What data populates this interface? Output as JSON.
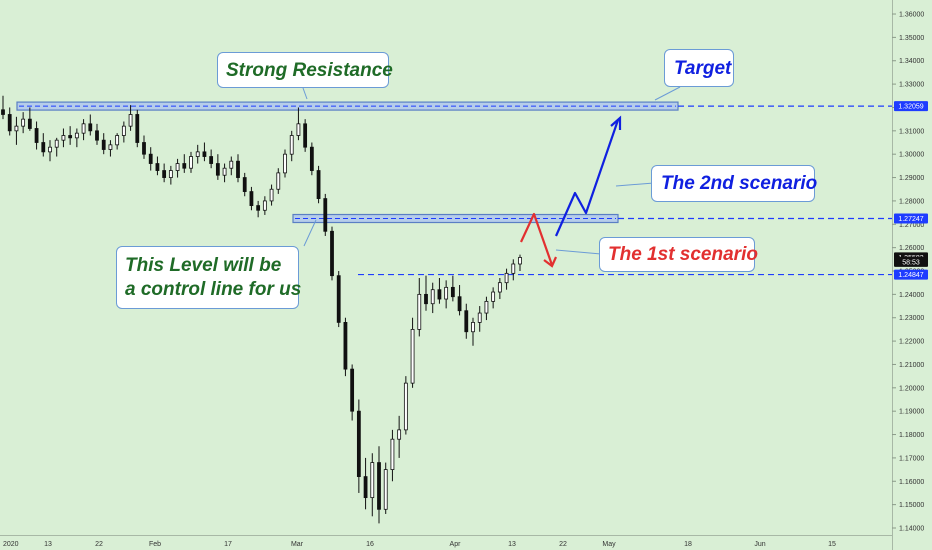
{
  "chart_data": {
    "type": "candlestick",
    "symbol_hint": "GBPUSD",
    "y_ticks": [
      "1.36000",
      "1.35000",
      "1.34000",
      "1.33000",
      "1.32000",
      "1.31000",
      "1.30000",
      "1.29000",
      "1.28000",
      "1.27000",
      "1.26000",
      "1.25000",
      "1.24000",
      "1.23000",
      "1.22000",
      "1.21000",
      "1.20000",
      "1.19000",
      "1.18000",
      "1.17000",
      "1.16000",
      "1.15000",
      "1.14000"
    ],
    "ylim": [
      1.137,
      1.366
    ],
    "x_ticks": [
      "2020",
      "13",
      "22",
      "Feb",
      "17",
      "Mar",
      "16",
      "Apr",
      "13",
      "22",
      "May",
      "18",
      "Jun",
      "15"
    ],
    "price_labels": [
      {
        "value": 1.32059,
        "text": "1.32059",
        "color": "#1e3cff"
      },
      {
        "value": 1.27247,
        "text": "1.27247",
        "color": "#1e3cff"
      },
      {
        "value": 1.25582,
        "text": "1.25582",
        "color": "#111111"
      },
      {
        "value": 1.2539,
        "text": "58:53",
        "color": "#111111"
      },
      {
        "value": 1.24847,
        "text": "1.24847",
        "color": "#1e3cff"
      }
    ],
    "levels": [
      {
        "name": "strong-resistance",
        "value": 1.32059
      },
      {
        "name": "mid-level",
        "value": 1.27247
      },
      {
        "name": "control-line",
        "value": 1.24847
      }
    ],
    "candles": [
      {
        "o": 1.319,
        "h": 1.325,
        "l": 1.315,
        "c": 1.317
      },
      {
        "o": 1.317,
        "h": 1.32,
        "l": 1.308,
        "c": 1.31
      },
      {
        "o": 1.31,
        "h": 1.316,
        "l": 1.304,
        "c": 1.312
      },
      {
        "o": 1.312,
        "h": 1.318,
        "l": 1.309,
        "c": 1.315
      },
      {
        "o": 1.315,
        "h": 1.32,
        "l": 1.31,
        "c": 1.311
      },
      {
        "o": 1.311,
        "h": 1.314,
        "l": 1.302,
        "c": 1.305
      },
      {
        "o": 1.305,
        "h": 1.309,
        "l": 1.299,
        "c": 1.301
      },
      {
        "o": 1.301,
        "h": 1.306,
        "l": 1.297,
        "c": 1.303
      },
      {
        "o": 1.303,
        "h": 1.307,
        "l": 1.299,
        "c": 1.306
      },
      {
        "o": 1.306,
        "h": 1.311,
        "l": 1.303,
        "c": 1.308
      },
      {
        "o": 1.308,
        "h": 1.312,
        "l": 1.304,
        "c": 1.307
      },
      {
        "o": 1.307,
        "h": 1.311,
        "l": 1.303,
        "c": 1.309
      },
      {
        "o": 1.309,
        "h": 1.315,
        "l": 1.306,
        "c": 1.313
      },
      {
        "o": 1.313,
        "h": 1.317,
        "l": 1.308,
        "c": 1.31
      },
      {
        "o": 1.31,
        "h": 1.313,
        "l": 1.304,
        "c": 1.306
      },
      {
        "o": 1.306,
        "h": 1.309,
        "l": 1.3,
        "c": 1.302
      },
      {
        "o": 1.302,
        "h": 1.306,
        "l": 1.299,
        "c": 1.304
      },
      {
        "o": 1.304,
        "h": 1.309,
        "l": 1.302,
        "c": 1.308
      },
      {
        "o": 1.308,
        "h": 1.314,
        "l": 1.305,
        "c": 1.312
      },
      {
        "o": 1.312,
        "h": 1.321,
        "l": 1.31,
        "c": 1.317
      },
      {
        "o": 1.317,
        "h": 1.319,
        "l": 1.303,
        "c": 1.305
      },
      {
        "o": 1.305,
        "h": 1.308,
        "l": 1.298,
        "c": 1.3
      },
      {
        "o": 1.3,
        "h": 1.303,
        "l": 1.293,
        "c": 1.296
      },
      {
        "o": 1.296,
        "h": 1.299,
        "l": 1.291,
        "c": 1.293
      },
      {
        "o": 1.293,
        "h": 1.296,
        "l": 1.288,
        "c": 1.29
      },
      {
        "o": 1.29,
        "h": 1.295,
        "l": 1.287,
        "c": 1.293
      },
      {
        "o": 1.293,
        "h": 1.298,
        "l": 1.29,
        "c": 1.296
      },
      {
        "o": 1.296,
        "h": 1.3,
        "l": 1.292,
        "c": 1.294
      },
      {
        "o": 1.294,
        "h": 1.301,
        "l": 1.292,
        "c": 1.299
      },
      {
        "o": 1.299,
        "h": 1.304,
        "l": 1.296,
        "c": 1.301
      },
      {
        "o": 1.301,
        "h": 1.305,
        "l": 1.297,
        "c": 1.299
      },
      {
        "o": 1.299,
        "h": 1.302,
        "l": 1.294,
        "c": 1.296
      },
      {
        "o": 1.296,
        "h": 1.3,
        "l": 1.289,
        "c": 1.291
      },
      {
        "o": 1.291,
        "h": 1.296,
        "l": 1.288,
        "c": 1.294
      },
      {
        "o": 1.294,
        "h": 1.299,
        "l": 1.291,
        "c": 1.297
      },
      {
        "o": 1.297,
        "h": 1.3,
        "l": 1.288,
        "c": 1.29
      },
      {
        "o": 1.29,
        "h": 1.292,
        "l": 1.282,
        "c": 1.284
      },
      {
        "o": 1.284,
        "h": 1.286,
        "l": 1.276,
        "c": 1.278
      },
      {
        "o": 1.278,
        "h": 1.28,
        "l": 1.273,
        "c": 1.276
      },
      {
        "o": 1.276,
        "h": 1.282,
        "l": 1.274,
        "c": 1.28
      },
      {
        "o": 1.28,
        "h": 1.287,
        "l": 1.278,
        "c": 1.285
      },
      {
        "o": 1.285,
        "h": 1.294,
        "l": 1.283,
        "c": 1.292
      },
      {
        "o": 1.292,
        "h": 1.302,
        "l": 1.29,
        "c": 1.3
      },
      {
        "o": 1.3,
        "h": 1.31,
        "l": 1.297,
        "c": 1.308
      },
      {
        "o": 1.308,
        "h": 1.32,
        "l": 1.306,
        "c": 1.313
      },
      {
        "o": 1.313,
        "h": 1.315,
        "l": 1.301,
        "c": 1.303
      },
      {
        "o": 1.303,
        "h": 1.305,
        "l": 1.291,
        "c": 1.293
      },
      {
        "o": 1.293,
        "h": 1.295,
        "l": 1.279,
        "c": 1.281
      },
      {
        "o": 1.281,
        "h": 1.283,
        "l": 1.265,
        "c": 1.267
      },
      {
        "o": 1.267,
        "h": 1.269,
        "l": 1.246,
        "c": 1.248
      },
      {
        "o": 1.248,
        "h": 1.25,
        "l": 1.226,
        "c": 1.228
      },
      {
        "o": 1.228,
        "h": 1.23,
        "l": 1.205,
        "c": 1.208
      },
      {
        "o": 1.208,
        "h": 1.21,
        "l": 1.186,
        "c": 1.19
      },
      {
        "o": 1.19,
        "h": 1.195,
        "l": 1.155,
        "c": 1.162
      },
      {
        "o": 1.162,
        "h": 1.17,
        "l": 1.148,
        "c": 1.153
      },
      {
        "o": 1.153,
        "h": 1.172,
        "l": 1.145,
        "c": 1.168
      },
      {
        "o": 1.168,
        "h": 1.175,
        "l": 1.142,
        "c": 1.148
      },
      {
        "o": 1.148,
        "h": 1.168,
        "l": 1.146,
        "c": 1.165
      },
      {
        "o": 1.165,
        "h": 1.182,
        "l": 1.16,
        "c": 1.178
      },
      {
        "o": 1.178,
        "h": 1.188,
        "l": 1.17,
        "c": 1.182
      },
      {
        "o": 1.182,
        "h": 1.205,
        "l": 1.18,
        "c": 1.202
      },
      {
        "o": 1.202,
        "h": 1.23,
        "l": 1.2,
        "c": 1.225
      },
      {
        "o": 1.225,
        "h": 1.247,
        "l": 1.222,
        "c": 1.24
      },
      {
        "o": 1.24,
        "h": 1.248,
        "l": 1.233,
        "c": 1.236
      },
      {
        "o": 1.236,
        "h": 1.245,
        "l": 1.232,
        "c": 1.242
      },
      {
        "o": 1.242,
        "h": 1.247,
        "l": 1.236,
        "c": 1.238
      },
      {
        "o": 1.238,
        "h": 1.246,
        "l": 1.234,
        "c": 1.243
      },
      {
        "o": 1.243,
        "h": 1.248,
        "l": 1.237,
        "c": 1.239
      },
      {
        "o": 1.239,
        "h": 1.244,
        "l": 1.231,
        "c": 1.233
      },
      {
        "o": 1.233,
        "h": 1.236,
        "l": 1.221,
        "c": 1.224
      },
      {
        "o": 1.224,
        "h": 1.23,
        "l": 1.218,
        "c": 1.228
      },
      {
        "o": 1.228,
        "h": 1.235,
        "l": 1.224,
        "c": 1.232
      },
      {
        "o": 1.232,
        "h": 1.239,
        "l": 1.229,
        "c": 1.237
      },
      {
        "o": 1.237,
        "h": 1.243,
        "l": 1.234,
        "c": 1.241
      },
      {
        "o": 1.241,
        "h": 1.247,
        "l": 1.238,
        "c": 1.245
      },
      {
        "o": 1.245,
        "h": 1.251,
        "l": 1.242,
        "c": 1.249
      },
      {
        "o": 1.249,
        "h": 1.255,
        "l": 1.246,
        "c": 1.253
      },
      {
        "o": 1.253,
        "h": 1.257,
        "l": 1.25,
        "c": 1.2558
      }
    ]
  },
  "annotations": {
    "strong_resistance": "Strong Resistance",
    "target": "Target",
    "second_scenario": "The 2nd scenario",
    "first_scenario": "The 1st scenario",
    "control_line_1": "This Level will be",
    "control_line_2": "a control line for us"
  },
  "colors": {
    "background": "#d9efd5",
    "candle": "#111111",
    "level_line": "#1e3cff",
    "zone_fill": "#b6cdea",
    "zone_border": "#5a7fc4",
    "second_scenario": "#1020e0",
    "first_scenario": "#e23030",
    "green_text": "#1f6b27",
    "callout_border": "#6b9bd6"
  }
}
